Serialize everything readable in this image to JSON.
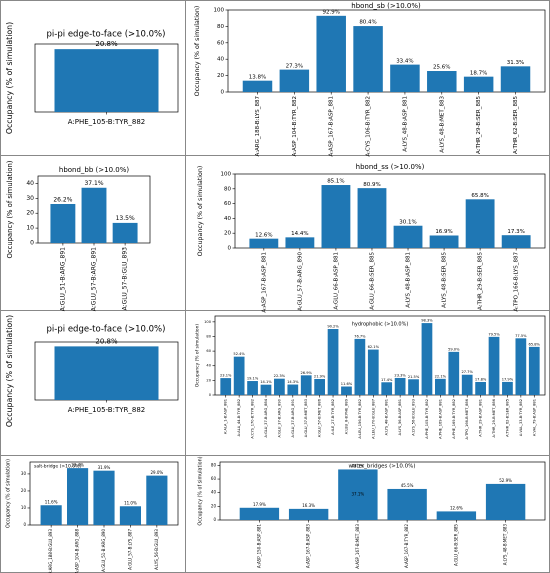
{
  "chart_data": [
    {
      "type": "bar",
      "title": "pi-pi edge-to-face (>10.0%)",
      "ylabel": "Occupancy (% of simulation)",
      "categories": [
        "A:PHE_105-B:TYR_882"
      ],
      "values": [
        20.8
      ],
      "value_labels": [
        "20.8%"
      ],
      "color": "#1f77b4",
      "ylim": [
        0,
        22.5
      ]
    },
    {
      "type": "bar",
      "title": "hbond_sb (>10.0%)",
      "ylabel": "Occupancy (% of simulation)",
      "categories": [
        "A:ARG_188-B:LYS_887",
        "A:ASP_104-B:TYR_882",
        "A:ASP_167-B:ASP_881",
        "A:CYS_106-B:TYR_882",
        "A:LYS_48-B:ASP_881",
        "A:LYS_48-B:MET_883",
        "A:THR_29-B:SER_885",
        "A:THR_62-B:SER_885"
      ],
      "values": [
        13.8,
        27.3,
        92.9,
        80.4,
        33.4,
        25.6,
        18.7,
        31.3
      ],
      "value_labels": [
        "13.8%",
        "27.3%",
        "92.9%",
        "80.4%",
        "33.4%",
        "25.6%",
        "18.7%",
        "31.3%"
      ],
      "color": "#1f77b4",
      "ylim": [
        0,
        100
      ],
      "yticks": [
        0,
        20,
        40,
        60,
        80,
        100
      ]
    },
    {
      "type": "bar",
      "title": "hbond_bb (>10.0%)",
      "ylabel": "Occupancy (% of simulation)",
      "categories": [
        "A:GLU_51-B:ARG_891",
        "A:GLU_57-B:ARG_891",
        "A:GLU_57-B:GLU_893"
      ],
      "values": [
        26.2,
        37.1,
        13.5
      ],
      "value_labels": [
        "26.2%",
        "37.1%",
        "13.5%"
      ],
      "color": "#1f77b4",
      "ylim": [
        0,
        45
      ],
      "yticks": [
        0,
        10,
        20,
        30,
        40
      ]
    },
    {
      "type": "bar",
      "title": "hbond_ss (>10.0%)",
      "ylabel": "Occupancy (% of simulation)",
      "categories": [
        "A:ASP_167-B:ASP_881",
        "A:GLU_57-B:ARG_890",
        "A:GLU_66-B:ASP_881",
        "A:GLU_66-B:SER_885",
        "A:LYS_48-B:ASP_881",
        "A:LYS_48-B:SER_885",
        "A:THR_29-B:SER_885",
        "A:TPO_166-B:LYS_887"
      ],
      "values": [
        12.6,
        14.4,
        85.1,
        80.9,
        30.1,
        16.9,
        65.8,
        17.3
      ],
      "value_labels": [
        "12.6%",
        "14.4%",
        "85.1%",
        "80.9%",
        "30.1%",
        "16.9%",
        "65.8%",
        "17.3%"
      ],
      "color": "#1f77b4",
      "ylim": [
        0,
        100
      ],
      "yticks": [
        0,
        20,
        40,
        60,
        80,
        100
      ]
    },
    {
      "type": "bar",
      "title": "pi-pi edge-to-face (>10.0%)",
      "ylabel": "Occupancy (% of simulation)",
      "categories": [
        "A:PHE_105-B:TYR_882"
      ],
      "values": [
        20.8
      ],
      "value_labels": [
        "20.8%"
      ],
      "color": "#1f77b4",
      "ylim": [
        0,
        22.5
      ]
    },
    {
      "type": "bar",
      "title": "hydrophobic (>10.0%)",
      "ylabel": "Occupancy (% of simulation)",
      "categories": [
        "A:ALA_1-B:ASP_881",
        "A:ALA_44-B:TYR_882",
        "A:CYS_170-B:TYR_882",
        "A:GLU_37-B:ARG_884",
        "A:GLU_37-B:ARG_890",
        "A:GLU_37-B:ARG_891",
        "A:GLU_37-B:MET_883",
        "A:GLU_57-B:MET_886",
        "A:ILE_27-B:TYR_882",
        "A:LEU_8-B:PHE_889",
        "A:LEU_156-B:TYR_882",
        "A:LEU_170-B:GLU_887",
        "A:LYS_48-B:ASP_881",
        "A:LYS_56-B:ASP_881",
        "A:LYS_56-B:GLU_893",
        "A:PHE_105-B:TYR_882",
        "A:PHE_169-B:ASP_881",
        "A:PHE_169-B:TYR_882",
        "A:TPO_166-B:MET_886",
        "A:THR_29-B:ASP_881",
        "A:THR_29-B:MET_886",
        "A:THR_62-B:SER_885",
        "A:VAL_33-B:TYR_882",
        "A:VAL_79-B:ASP_881"
      ],
      "values": [
        23.1,
        52.4,
        19.1,
        14.1,
        22.3,
        14.3,
        26.9,
        21.9,
        90.2,
        11.6,
        76.7,
        62.1,
        17.4,
        23.3,
        21.5,
        98.3,
        22.1,
        59.0,
        27.7,
        17.8,
        79.5,
        17.9,
        77.5,
        65.8
      ],
      "value_labels": [
        "23.1%",
        "52.4%",
        "19.1%",
        "14.1%",
        "22.3%",
        "14.3%",
        "26.9%",
        "21.9%",
        "90.2%",
        "11.6%",
        "76.7%",
        "62.1%",
        "17.4%",
        "23.3%",
        "21.5%",
        "98.3%",
        "22.1%",
        "59.0%",
        "27.7%",
        "17.8%",
        "79.5%",
        "17.9%",
        "77.5%",
        "65.8%"
      ],
      "color": "#1f77b4",
      "ylim": [
        0,
        108
      ],
      "yticks": [
        0,
        20,
        40,
        60,
        80,
        100
      ]
    },
    {
      "type": "bar",
      "title": "salt-bridge (>10.0%)",
      "ylabel": "Occupancy (% of simulation)",
      "categories": [
        "A:ARG_188-B:GLU_893",
        "A:ASP_104-B:ARG_888",
        "A:GLU_51-B:ARG_890",
        "A:GLU_57-B:LYS_887",
        "A:LYS_56-B:GLU_893"
      ],
      "values": [
        11.6,
        33.4,
        31.9,
        11.0,
        29.0
      ],
      "value_labels": [
        "11.6%",
        "33.4%",
        "31.9%",
        "11.0%",
        "29.0%"
      ],
      "color": "#1f77b4",
      "ylim": [
        0,
        37
      ],
      "yticks": [
        0,
        10,
        20,
        30
      ]
    },
    {
      "type": "bar",
      "title": "water_bridges (>10.0%)",
      "ylabel": "Occupancy (% of simulation)",
      "categories": [
        "A:ASP_150-B:ASP_881",
        "A:ASP_167-B:ASP_883",
        "A:ASP_167-B:MET_883",
        "A:ASP_167-B:TYR_882",
        "A:GLU_66-B:SER_885",
        "A:LYS_48-B:MET_883"
      ],
      "values": [
        17.9,
        16.3,
        74.1,
        45.5,
        12.6,
        52.9
      ],
      "value_labels": [
        "17.9%",
        "16.3%",
        "74.1%",
        "45.5%",
        "12.6%",
        "52.9%"
      ],
      "annotation": "37.1%",
      "color": "#1f77b4",
      "ylim": [
        0,
        85
      ],
      "yticks": [
        0,
        20,
        40,
        60,
        80
      ]
    }
  ]
}
